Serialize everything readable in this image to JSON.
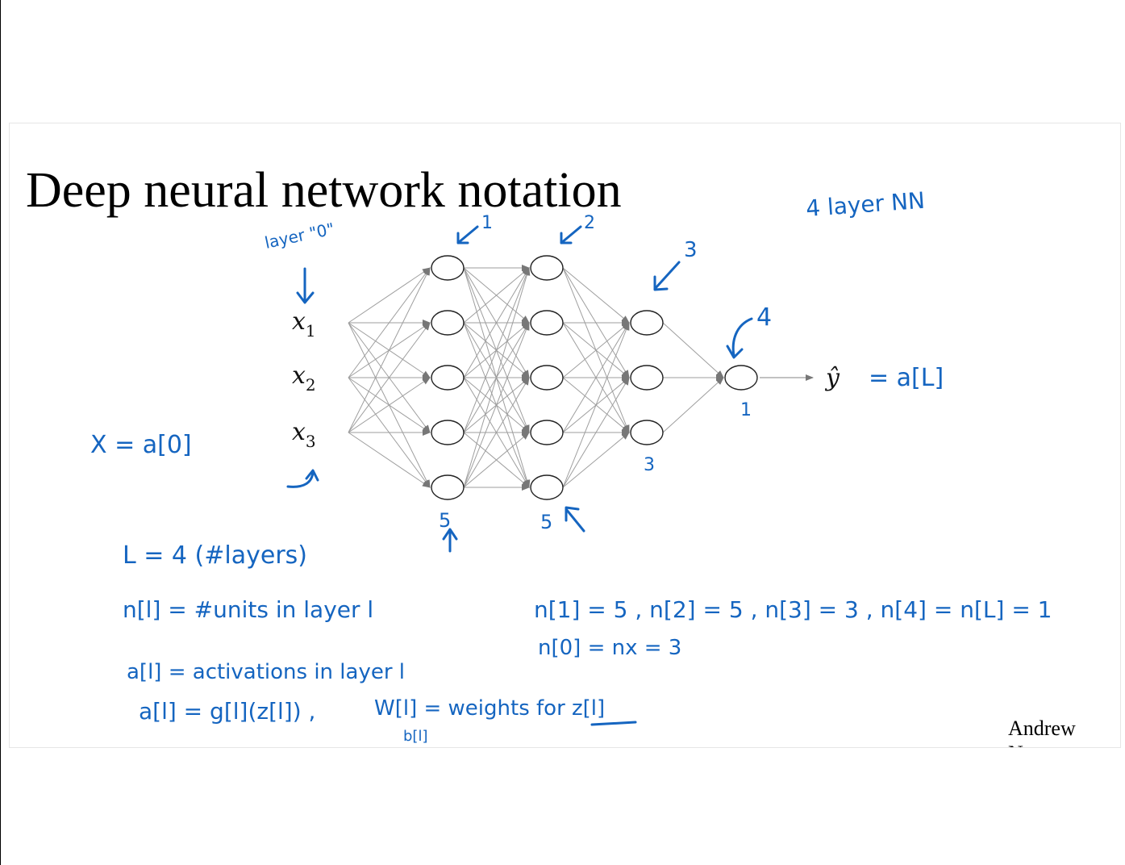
{
  "slide": {
    "title": "Deep neural network notation",
    "footer": "Andrew Ng"
  },
  "network": {
    "inputs": [
      {
        "base": "x",
        "sub": "1"
      },
      {
        "base": "x",
        "sub": "2"
      },
      {
        "base": "x",
        "sub": "3"
      }
    ],
    "layer_sizes": [
      5,
      5,
      3,
      1
    ],
    "output_label": "ŷ",
    "colors": {
      "ink": "#1565c0",
      "edge": "#9e9e9e",
      "node": "#222222"
    }
  },
  "annotations": {
    "layer_zero": "layer \"0\"",
    "layer_numbers": [
      "1",
      "2",
      "3",
      "4"
    ],
    "unit_counts": [
      "5",
      "5",
      "3",
      "1"
    ],
    "network_type": "4 layer NN",
    "output_eq": "= a[L]",
    "input_eq": "X = a[0]",
    "notes": {
      "L": "L = 4   (#layers)",
      "n_def": "n[l] = #units in layer l",
      "a_def": "a[l] = activations in layer l",
      "a_formula": "a[l] = g[l](z[l]) ,",
      "w_def": "W[l] = weights for z[l]",
      "b_def": "b[l]",
      "n_values": "n[1] = 5 , n[2] = 5 , n[3] = 3 , n[4] = n[L] = 1",
      "n0": "n[0] = nx = 3"
    }
  }
}
